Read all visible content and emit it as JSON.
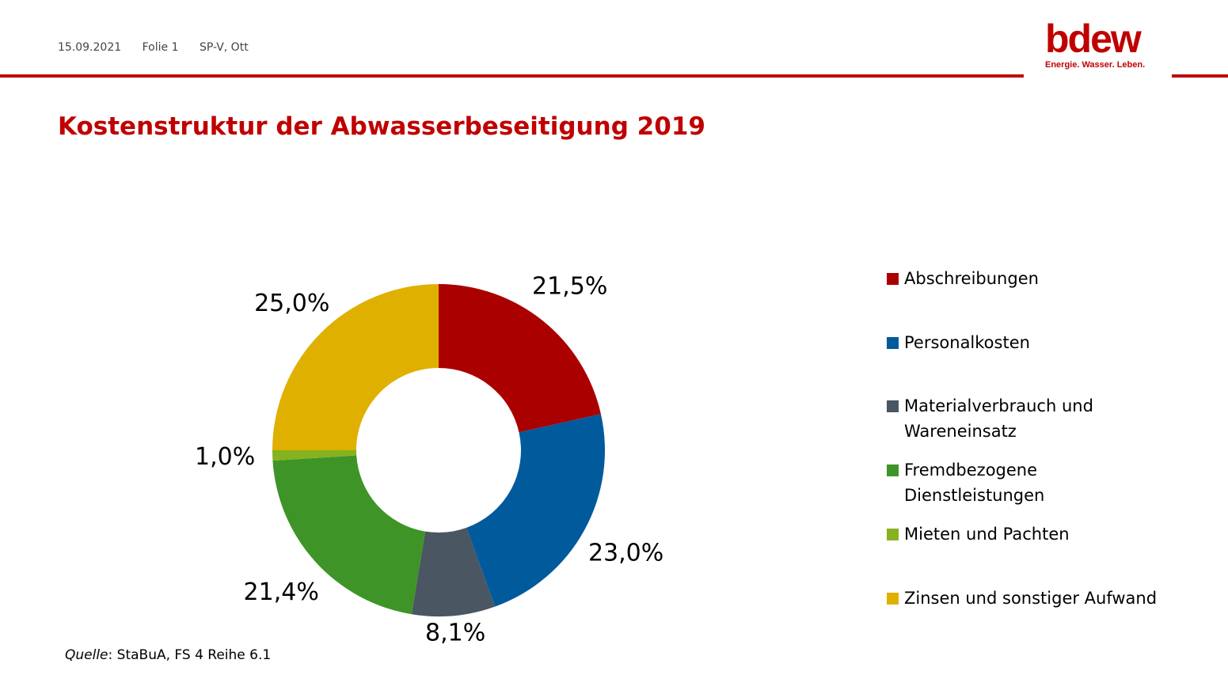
{
  "header": {
    "date": "15.09.2021",
    "slide": "Folie 1",
    "author": "SP-V, Ott"
  },
  "logo": {
    "wordmark": "bdew",
    "tagline": "Energie. Wasser. Leben."
  },
  "title": "Kostenstruktur der Abwasserbeseitigung 2019",
  "source": {
    "prefix": "Quelle",
    "text": ": StaBuA, FS 4 Reihe 6.1"
  },
  "colors": {
    "accent": "#c00000"
  },
  "chart_data": {
    "type": "pie",
    "variant": "donut",
    "title": "",
    "legend_position": "right",
    "categories": [
      "Abschreibungen",
      "Personalkosten",
      "Materialverbrauch und Wareneinsatz",
      "Fremdbezogene Dienstleistungen",
      "Mieten und Pachten",
      "Zinsen und sonstiger Aufwand"
    ],
    "legend_lines": [
      [
        "Abschreibungen"
      ],
      [
        "Personalkosten"
      ],
      [
        "Materialverbrauch und",
        "Wareneinsatz"
      ],
      [
        "Fremdbezogene",
        "Dienstleistungen"
      ],
      [
        "Mieten und Pachten"
      ],
      [
        "Zinsen und sonstiger Aufwand"
      ]
    ],
    "values": [
      21.5,
      23.0,
      8.1,
      21.4,
      1.0,
      25.0
    ],
    "labels": [
      "21,5%",
      "23,0%",
      "8,1%",
      "21,4%",
      "1,0%",
      "25,0%"
    ],
    "colors": [
      "#aa0000",
      "#005a9b",
      "#4a5661",
      "#3f9428",
      "#86b21f",
      "#e0b000"
    ]
  }
}
